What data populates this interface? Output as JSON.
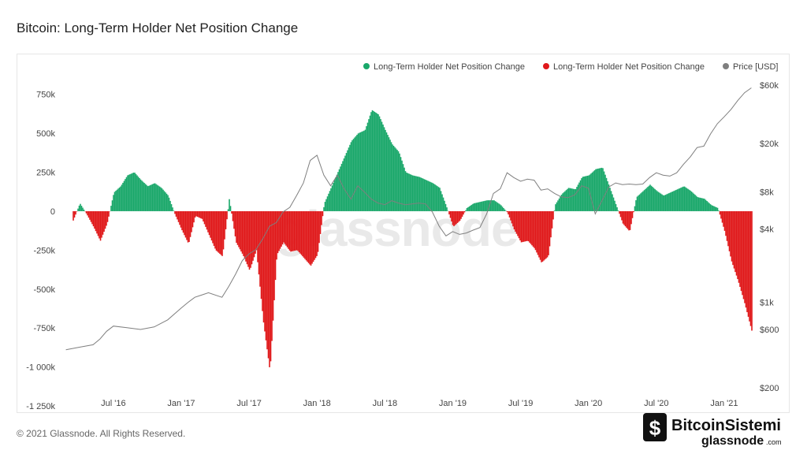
{
  "page": {
    "title": "Bitcoin: Long-Term Holder Net Position Change",
    "copyright": "© 2021 Glassnode. All Rights Reserved.",
    "watermark": "glassnode",
    "brand_line1": "BitcoinSistemi",
    "brand_line2": "glassnode",
    "brand_suffix": ".com"
  },
  "chart_data": {
    "type": "area",
    "title": "Bitcoin: Long-Term Holder Net Position Change",
    "legend_position": "top-right",
    "legend": [
      {
        "label": "Long-Term Holder Net Position Change",
        "color": "#1aa86a",
        "icon": "green-dot"
      },
      {
        "label": "Long-Term Holder Net Position Change",
        "color": "#e0191b",
        "icon": "red-dot"
      },
      {
        "label": "Price [USD]",
        "color": "#7f7f7f",
        "icon": "gray-dot"
      }
    ],
    "x_ticks": [
      "Jul '16",
      "Jan '17",
      "Jul '17",
      "Jan '18",
      "Jul '18",
      "Jan '19",
      "Jul '19",
      "Jan '20",
      "Jul '20",
      "Jan '21"
    ],
    "x_range": [
      "2016-03",
      "2021-03"
    ],
    "y_left": {
      "ticks": [
        "750k",
        "500k",
        "250k",
        "0",
        "-250k",
        "-500k",
        "-750k",
        "-1 000k",
        "-1 250k"
      ],
      "values": [
        750000,
        500000,
        250000,
        0,
        -250000,
        -500000,
        -750000,
        -1000000,
        -1250000
      ],
      "range": [
        -1250000,
        875000
      ]
    },
    "y_right": {
      "scale": "log",
      "ticks": [
        "$60k",
        "$20k",
        "$8k",
        "$4k",
        "$1k",
        "$600",
        "$200"
      ],
      "values": [
        60000,
        20000,
        8000,
        4000,
        1000,
        600,
        200
      ],
      "range": [
        200,
        60000
      ]
    },
    "colors": {
      "positive": "#1aa86a",
      "negative": "#e0191b",
      "price": "#7f7f7f"
    },
    "series": [
      {
        "name": "Long-Term Holder Net Position Change",
        "x": [
          2016.2,
          2016.25,
          2016.3,
          2016.35,
          2016.4,
          2016.45,
          2016.5,
          2016.55,
          2016.6,
          2016.65,
          2016.7,
          2016.75,
          2016.8,
          2016.85,
          2016.9,
          2016.95,
          2017.0,
          2017.05,
          2017.1,
          2017.15,
          2017.2,
          2017.25,
          2017.3,
          2017.35,
          2017.4,
          2017.45,
          2017.5,
          2017.55,
          2017.6,
          2017.65,
          2017.7,
          2017.75,
          2017.8,
          2017.85,
          2017.9,
          2017.95,
          2018.0,
          2018.05,
          2018.1,
          2018.15,
          2018.2,
          2018.25,
          2018.3,
          2018.35,
          2018.4,
          2018.45,
          2018.5,
          2018.55,
          2018.6,
          2018.65,
          2018.7,
          2018.75,
          2018.8,
          2018.85,
          2018.9,
          2018.95,
          2019.0,
          2019.05,
          2019.1,
          2019.15,
          2019.2,
          2019.25,
          2019.3,
          2019.35,
          2019.4,
          2019.45,
          2019.5,
          2019.55,
          2019.6,
          2019.65,
          2019.7,
          2019.75,
          2019.8,
          2019.85,
          2019.9,
          2019.95,
          2020.0,
          2020.05,
          2020.1,
          2020.15,
          2020.2,
          2020.25,
          2020.3,
          2020.35,
          2020.4,
          2020.45,
          2020.5,
          2020.55,
          2020.6,
          2020.65,
          2020.7,
          2020.75,
          2020.8,
          2020.85,
          2020.9,
          2020.95,
          2021.0,
          2021.05,
          2021.1,
          2021.15,
          2021.2
        ],
        "values": [
          -60000,
          50000,
          -20000,
          -100000,
          -190000,
          -80000,
          120000,
          160000,
          230000,
          250000,
          200000,
          160000,
          180000,
          150000,
          100000,
          -20000,
          -120000,
          -210000,
          -30000,
          -50000,
          -150000,
          -250000,
          -290000,
          80000,
          -200000,
          -280000,
          -380000,
          -250000,
          -700000,
          -1030000,
          -280000,
          -200000,
          -260000,
          -250000,
          -300000,
          -350000,
          -280000,
          50000,
          150000,
          250000,
          350000,
          450000,
          500000,
          520000,
          650000,
          620000,
          520000,
          430000,
          380000,
          250000,
          230000,
          220000,
          200000,
          180000,
          150000,
          30000,
          -100000,
          -60000,
          20000,
          50000,
          60000,
          70000,
          70000,
          40000,
          -10000,
          -120000,
          -200000,
          -190000,
          -240000,
          -330000,
          -290000,
          40000,
          110000,
          150000,
          140000,
          220000,
          230000,
          270000,
          280000,
          160000,
          40000,
          -80000,
          -130000,
          90000,
          130000,
          170000,
          130000,
          100000,
          120000,
          140000,
          160000,
          130000,
          90000,
          80000,
          40000,
          20000,
          -130000,
          -320000,
          -450000,
          -600000,
          -770000
        ]
      },
      {
        "name": "Price [USD]",
        "x": [
          2016.15,
          2016.25,
          2016.35,
          2016.4,
          2016.45,
          2016.5,
          2016.6,
          2016.7,
          2016.8,
          2016.9,
          2017.0,
          2017.05,
          2017.1,
          2017.2,
          2017.3,
          2017.35,
          2017.4,
          2017.45,
          2017.5,
          2017.55,
          2017.6,
          2017.65,
          2017.7,
          2017.75,
          2017.8,
          2017.85,
          2017.9,
          2017.95,
          2018.0,
          2018.05,
          2018.1,
          2018.15,
          2018.2,
          2018.25,
          2018.3,
          2018.35,
          2018.4,
          2018.45,
          2018.5,
          2018.55,
          2018.6,
          2018.65,
          2018.7,
          2018.75,
          2018.8,
          2018.85,
          2018.9,
          2018.95,
          2019.0,
          2019.05,
          2019.1,
          2019.15,
          2019.2,
          2019.25,
          2019.3,
          2019.35,
          2019.4,
          2019.45,
          2019.5,
          2019.55,
          2019.6,
          2019.65,
          2019.7,
          2019.75,
          2019.8,
          2019.85,
          2019.9,
          2019.95,
          2020.0,
          2020.05,
          2020.1,
          2020.15,
          2020.2,
          2020.25,
          2020.3,
          2020.35,
          2020.4,
          2020.45,
          2020.5,
          2020.55,
          2020.6,
          2020.65,
          2020.7,
          2020.75,
          2020.8,
          2020.85,
          2020.9,
          2020.95,
          2021.0,
          2021.05,
          2021.1,
          2021.15,
          2021.2
        ],
        "values": [
          410,
          430,
          450,
          500,
          580,
          640,
          620,
          600,
          630,
          720,
          900,
          1000,
          1100,
          1200,
          1100,
          1350,
          1700,
          2200,
          2500,
          2700,
          3300,
          4200,
          4500,
          5500,
          6000,
          7500,
          9500,
          14500,
          16000,
          11000,
          9000,
          11000,
          8500,
          7000,
          9000,
          8000,
          7000,
          6500,
          6300,
          6800,
          6500,
          6300,
          6400,
          6500,
          6400,
          5500,
          4200,
          3500,
          3800,
          3600,
          3700,
          3900,
          4100,
          5300,
          7800,
          8500,
          11500,
          10500,
          9800,
          10200,
          10000,
          8300,
          8500,
          7800,
          7300,
          7200,
          7600,
          9000,
          8600,
          5300,
          6800,
          8800,
          9500,
          9200,
          9300,
          9200,
          9300,
          10500,
          11500,
          11000,
          10800,
          11500,
          13500,
          15500,
          18500,
          19000,
          24000,
          29000,
          33000,
          38000,
          45000,
          52000,
          57000
        ]
      }
    ]
  }
}
